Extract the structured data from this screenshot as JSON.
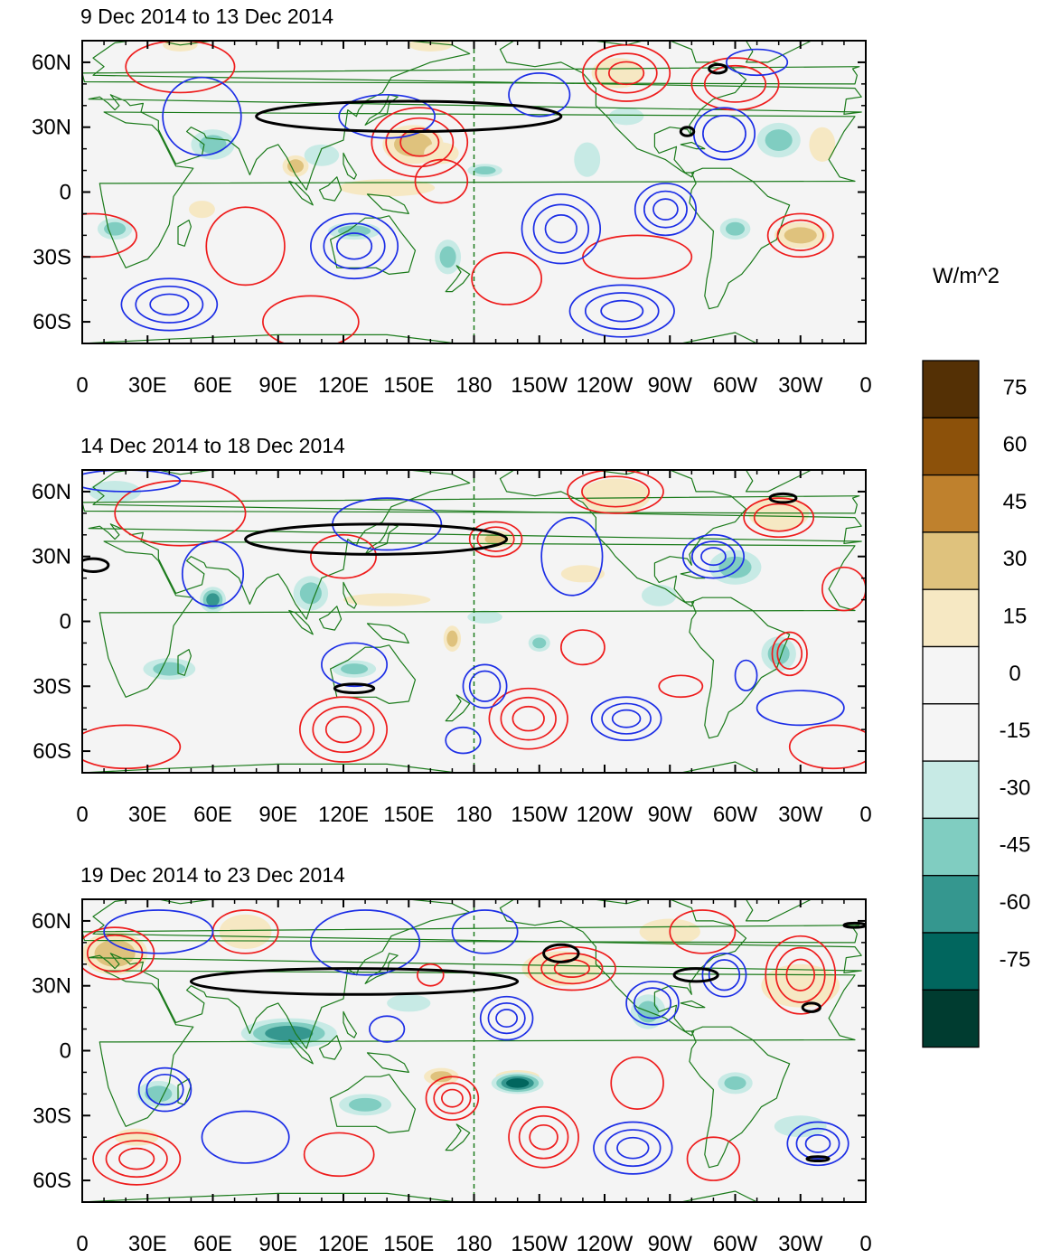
{
  "panels": [
    {
      "title": "9 Dec 2014 to 13 Dec 2014",
      "shading": [
        {
          "lon": 152,
          "lat": 22,
          "rx": 14,
          "ry": 9,
          "v": 38
        },
        {
          "lon": 165,
          "lat": 18,
          "rx": 8,
          "ry": 5,
          "v": 22
        },
        {
          "lon": 246,
          "lat": 55,
          "rx": 12,
          "ry": 7,
          "v": 26
        },
        {
          "lon": 330,
          "lat": -20,
          "rx": 12,
          "ry": 6,
          "v": 30
        },
        {
          "lon": 340,
          "lat": 22,
          "rx": 6,
          "ry": 8,
          "v": 20
        },
        {
          "lon": 160,
          "lat": 68,
          "rx": 10,
          "ry": 3,
          "v": 18
        },
        {
          "lon": 45,
          "lat": 68,
          "rx": 8,
          "ry": 3,
          "v": 18
        },
        {
          "lon": 98,
          "lat": 12,
          "rx": 6,
          "ry": 5,
          "v": 30
        },
        {
          "lon": 55,
          "lat": -8,
          "rx": 6,
          "ry": 4,
          "v": 28
        },
        {
          "lon": 140,
          "lat": 2,
          "rx": 22,
          "ry": 4,
          "v": 20
        },
        {
          "lon": 60,
          "lat": 22,
          "rx": 10,
          "ry": 7,
          "v": -40
        },
        {
          "lon": 110,
          "lat": 17,
          "rx": 8,
          "ry": 5,
          "v": -28
        },
        {
          "lon": 125,
          "lat": -18,
          "rx": 12,
          "ry": 4,
          "v": -40
        },
        {
          "lon": 168,
          "lat": -30,
          "rx": 6,
          "ry": 8,
          "v": -35
        },
        {
          "lon": 15,
          "lat": -17,
          "rx": 8,
          "ry": 5,
          "v": -30
        },
        {
          "lon": 185,
          "lat": 10,
          "rx": 8,
          "ry": 3,
          "v": -30
        },
        {
          "lon": 232,
          "lat": 15,
          "rx": 6,
          "ry": 8,
          "v": -25
        },
        {
          "lon": 320,
          "lat": 24,
          "rx": 10,
          "ry": 8,
          "v": -40
        },
        {
          "lon": 300,
          "lat": -17,
          "rx": 7,
          "ry": 5,
          "v": -30
        },
        {
          "lon": 250,
          "lat": 35,
          "rx": 8,
          "ry": 4,
          "v": -20
        }
      ],
      "red": [
        {
          "lon": 155,
          "lat": 23,
          "rx": 22,
          "ry": 16,
          "n": 3
        },
        {
          "lon": 250,
          "lat": 55,
          "rx": 20,
          "ry": 13,
          "n": 3
        },
        {
          "lon": 300,
          "lat": 50,
          "rx": 20,
          "ry": 12,
          "n": 2
        },
        {
          "lon": 330,
          "lat": -20,
          "rx": 15,
          "ry": 10,
          "n": 2
        },
        {
          "lon": 255,
          "lat": -30,
          "rx": 25,
          "ry": 10,
          "n": 1
        },
        {
          "lon": 75,
          "lat": -25,
          "rx": 18,
          "ry": 18,
          "n": 1
        },
        {
          "lon": 5,
          "lat": -20,
          "rx": 20,
          "ry": 10,
          "n": 1
        },
        {
          "lon": 105,
          "lat": -60,
          "rx": 22,
          "ry": 12,
          "n": 1
        },
        {
          "lon": 195,
          "lat": -40,
          "rx": 16,
          "ry": 12,
          "n": 1
        },
        {
          "lon": 45,
          "lat": 58,
          "rx": 25,
          "ry": 12,
          "n": 1
        },
        {
          "lon": 165,
          "lat": 5,
          "rx": 12,
          "ry": 10,
          "n": 1
        }
      ],
      "blue": [
        {
          "lon": 220,
          "lat": -17,
          "rx": 18,
          "ry": 16,
          "n": 3
        },
        {
          "lon": 268,
          "lat": -8,
          "rx": 14,
          "ry": 12,
          "n": 3
        },
        {
          "lon": 125,
          "lat": -25,
          "rx": 20,
          "ry": 15,
          "n": 3
        },
        {
          "lon": 40,
          "lat": -52,
          "rx": 22,
          "ry": 12,
          "n": 3
        },
        {
          "lon": 248,
          "lat": -55,
          "rx": 24,
          "ry": 12,
          "n": 3
        },
        {
          "lon": 210,
          "lat": 45,
          "rx": 14,
          "ry": 10,
          "n": 1
        },
        {
          "lon": 295,
          "lat": 27,
          "rx": 14,
          "ry": 12,
          "n": 2
        },
        {
          "lon": 310,
          "lat": 60,
          "rx": 14,
          "ry": 6,
          "n": 1
        },
        {
          "lon": 55,
          "lat": 35,
          "rx": 18,
          "ry": 18,
          "n": 1
        },
        {
          "lon": 140,
          "lat": 35,
          "rx": 22,
          "ry": 10,
          "n": 1
        }
      ],
      "black": [
        {
          "lon": 150,
          "lat": 35,
          "rx": 70,
          "ry": 7
        },
        {
          "lon": 292,
          "lat": 57,
          "rx": 4,
          "ry": 2
        },
        {
          "lon": 278,
          "lat": 28,
          "rx": 3,
          "ry": 2
        }
      ]
    },
    {
      "title": "14 Dec 2014 to 18 Dec 2014",
      "shading": [
        {
          "lon": 245,
          "lat": 58,
          "rx": 16,
          "ry": 8,
          "v": 25
        },
        {
          "lon": 320,
          "lat": 50,
          "rx": 14,
          "ry": 8,
          "v": 25
        },
        {
          "lon": 170,
          "lat": -8,
          "rx": 4,
          "ry": 6,
          "v": 40
        },
        {
          "lon": 190,
          "lat": 38,
          "rx": 8,
          "ry": 4,
          "v": 30
        },
        {
          "lon": 140,
          "lat": 10,
          "rx": 20,
          "ry": 3,
          "v": 18
        },
        {
          "lon": 230,
          "lat": 22,
          "rx": 10,
          "ry": 4,
          "v": 20
        },
        {
          "lon": 60,
          "lat": 10,
          "rx": 6,
          "ry": 6,
          "v": -55
        },
        {
          "lon": 105,
          "lat": 13,
          "rx": 8,
          "ry": 8,
          "v": -40
        },
        {
          "lon": 185,
          "lat": 2,
          "rx": 8,
          "ry": 3,
          "v": -25
        },
        {
          "lon": 210,
          "lat": -10,
          "rx": 5,
          "ry": 4,
          "v": -40
        },
        {
          "lon": 40,
          "lat": -22,
          "rx": 12,
          "ry": 5,
          "v": -35
        },
        {
          "lon": 125,
          "lat": -22,
          "rx": 10,
          "ry": 4,
          "v": -30
        },
        {
          "lon": 300,
          "lat": 25,
          "rx": 12,
          "ry": 8,
          "v": -35
        },
        {
          "lon": 320,
          "lat": -15,
          "rx": 8,
          "ry": 8,
          "v": -30
        },
        {
          "lon": 265,
          "lat": 12,
          "rx": 8,
          "ry": 5,
          "v": -25
        },
        {
          "lon": 15,
          "lat": 60,
          "rx": 12,
          "ry": 5,
          "v": -20
        }
      ],
      "red": [
        {
          "lon": 205,
          "lat": -45,
          "rx": 18,
          "ry": 14,
          "n": 3
        },
        {
          "lon": 120,
          "lat": -50,
          "rx": 20,
          "ry": 15,
          "n": 3
        },
        {
          "lon": 320,
          "lat": 48,
          "rx": 16,
          "ry": 9,
          "n": 2
        },
        {
          "lon": 245,
          "lat": 60,
          "rx": 22,
          "ry": 10,
          "n": 2
        },
        {
          "lon": 325,
          "lat": -15,
          "rx": 8,
          "ry": 10,
          "n": 2
        },
        {
          "lon": 230,
          "lat": -12,
          "rx": 10,
          "ry": 8,
          "n": 1
        },
        {
          "lon": 190,
          "lat": 38,
          "rx": 12,
          "ry": 8,
          "n": 2
        },
        {
          "lon": 120,
          "lat": 30,
          "rx": 15,
          "ry": 10,
          "n": 1
        },
        {
          "lon": 45,
          "lat": 50,
          "rx": 30,
          "ry": 15,
          "n": 1
        },
        {
          "lon": 20,
          "lat": -58,
          "rx": 25,
          "ry": 10,
          "n": 1
        },
        {
          "lon": 345,
          "lat": -58,
          "rx": 20,
          "ry": 10,
          "n": 1
        },
        {
          "lon": 275,
          "lat": -30,
          "rx": 10,
          "ry": 5,
          "n": 1
        },
        {
          "lon": 350,
          "lat": 15,
          "rx": 10,
          "ry": 10,
          "n": 1
        }
      ],
      "blue": [
        {
          "lon": 250,
          "lat": -45,
          "rx": 16,
          "ry": 10,
          "n": 3
        },
        {
          "lon": 290,
          "lat": 30,
          "rx": 14,
          "ry": 10,
          "n": 3
        },
        {
          "lon": 185,
          "lat": -30,
          "rx": 10,
          "ry": 10,
          "n": 2
        },
        {
          "lon": 140,
          "lat": 45,
          "rx": 25,
          "ry": 12,
          "n": 1
        },
        {
          "lon": 225,
          "lat": 30,
          "rx": 14,
          "ry": 18,
          "n": 1
        },
        {
          "lon": 60,
          "lat": 22,
          "rx": 14,
          "ry": 15,
          "n": 1
        },
        {
          "lon": 125,
          "lat": -20,
          "rx": 15,
          "ry": 10,
          "n": 1
        },
        {
          "lon": 175,
          "lat": -55,
          "rx": 8,
          "ry": 6,
          "n": 1
        },
        {
          "lon": 330,
          "lat": -40,
          "rx": 20,
          "ry": 8,
          "n": 1
        },
        {
          "lon": 20,
          "lat": 65,
          "rx": 25,
          "ry": 5,
          "n": 1
        },
        {
          "lon": 305,
          "lat": -25,
          "rx": 5,
          "ry": 7,
          "n": 1
        }
      ],
      "black": [
        {
          "lon": 135,
          "lat": 38,
          "rx": 60,
          "ry": 7
        },
        {
          "lon": 125,
          "lat": -31,
          "rx": 9,
          "ry": 2
        },
        {
          "lon": 322,
          "lat": 57,
          "rx": 6,
          "ry": 2
        },
        {
          "lon": 5,
          "lat": 26,
          "rx": 7,
          "ry": 3
        }
      ]
    },
    {
      "title": "19 Dec 2014 to 23 Dec 2014",
      "shading": [
        {
          "lon": 220,
          "lat": 38,
          "rx": 18,
          "ry": 8,
          "v": 25
        },
        {
          "lon": 270,
          "lat": 55,
          "rx": 14,
          "ry": 6,
          "v": 22
        },
        {
          "lon": 15,
          "lat": 45,
          "rx": 15,
          "ry": 10,
          "v": 30
        },
        {
          "lon": 330,
          "lat": 30,
          "rx": 18,
          "ry": 10,
          "v": 20
        },
        {
          "lon": 165,
          "lat": -12,
          "rx": 8,
          "ry": 4,
          "v": 35
        },
        {
          "lon": 75,
          "lat": 55,
          "rx": 12,
          "ry": 8,
          "v": 22
        },
        {
          "lon": 25,
          "lat": -40,
          "rx": 10,
          "ry": 4,
          "v": 18
        },
        {
          "lon": 200,
          "lat": -12,
          "rx": 10,
          "ry": 3,
          "v": 18
        },
        {
          "lon": 95,
          "lat": 8,
          "rx": 22,
          "ry": 7,
          "v": -50
        },
        {
          "lon": 200,
          "lat": -15,
          "rx": 12,
          "ry": 5,
          "v": -60
        },
        {
          "lon": 130,
          "lat": -25,
          "rx": 12,
          "ry": 5,
          "v": -35
        },
        {
          "lon": 35,
          "lat": -20,
          "rx": 10,
          "ry": 6,
          "v": -40
        },
        {
          "lon": 260,
          "lat": 18,
          "rx": 8,
          "ry": 8,
          "v": -40
        },
        {
          "lon": 300,
          "lat": -15,
          "rx": 8,
          "ry": 5,
          "v": -30
        },
        {
          "lon": 150,
          "lat": 22,
          "rx": 10,
          "ry": 4,
          "v": -25
        },
        {
          "lon": 330,
          "lat": -35,
          "rx": 12,
          "ry": 5,
          "v": -25
        }
      ],
      "red": [
        {
          "lon": 212,
          "lat": -40,
          "rx": 16,
          "ry": 14,
          "n": 3
        },
        {
          "lon": 25,
          "lat": -50,
          "rx": 20,
          "ry": 12,
          "n": 3
        },
        {
          "lon": 170,
          "lat": -22,
          "rx": 12,
          "ry": 10,
          "n": 3
        },
        {
          "lon": 225,
          "lat": 38,
          "rx": 20,
          "ry": 10,
          "n": 3
        },
        {
          "lon": 330,
          "lat": 35,
          "rx": 16,
          "ry": 18,
          "n": 3
        },
        {
          "lon": 15,
          "lat": 45,
          "rx": 18,
          "ry": 12,
          "n": 2
        },
        {
          "lon": 118,
          "lat": -48,
          "rx": 16,
          "ry": 10,
          "n": 1
        },
        {
          "lon": 75,
          "lat": 55,
          "rx": 15,
          "ry": 10,
          "n": 1
        },
        {
          "lon": 290,
          "lat": -50,
          "rx": 12,
          "ry": 10,
          "n": 1
        },
        {
          "lon": 285,
          "lat": 55,
          "rx": 15,
          "ry": 10,
          "n": 1
        },
        {
          "lon": 255,
          "lat": -15,
          "rx": 12,
          "ry": 12,
          "n": 1
        },
        {
          "lon": 160,
          "lat": 35,
          "rx": 6,
          "ry": 5,
          "n": 1
        }
      ],
      "blue": [
        {
          "lon": 253,
          "lat": -45,
          "rx": 18,
          "ry": 12,
          "n": 3
        },
        {
          "lon": 338,
          "lat": -43,
          "rx": 14,
          "ry": 10,
          "n": 3
        },
        {
          "lon": 38,
          "lat": -18,
          "rx": 12,
          "ry": 10,
          "n": 2
        },
        {
          "lon": 195,
          "lat": 15,
          "rx": 12,
          "ry": 10,
          "n": 3
        },
        {
          "lon": 262,
          "lat": 22,
          "rx": 12,
          "ry": 10,
          "n": 2
        },
        {
          "lon": 295,
          "lat": 35,
          "rx": 10,
          "ry": 10,
          "n": 2
        },
        {
          "lon": 75,
          "lat": -40,
          "rx": 20,
          "ry": 12,
          "n": 1
        },
        {
          "lon": 130,
          "lat": 50,
          "rx": 25,
          "ry": 15,
          "n": 1
        },
        {
          "lon": 35,
          "lat": 55,
          "rx": 25,
          "ry": 10,
          "n": 1
        },
        {
          "lon": 140,
          "lat": 10,
          "rx": 8,
          "ry": 6,
          "n": 1
        },
        {
          "lon": 185,
          "lat": 55,
          "rx": 15,
          "ry": 10,
          "n": 1
        }
      ],
      "black": [
        {
          "lon": 125,
          "lat": 32,
          "rx": 75,
          "ry": 6
        },
        {
          "lon": 220,
          "lat": 45,
          "rx": 8,
          "ry": 4
        },
        {
          "lon": 282,
          "lat": 35,
          "rx": 10,
          "ry": 3
        },
        {
          "lon": 335,
          "lat": 20,
          "rx": 4,
          "ry": 2
        },
        {
          "lon": 355,
          "lat": 58,
          "rx": 5,
          "ry": 1
        },
        {
          "lon": 338,
          "lat": -50,
          "rx": 5,
          "ry": 1
        }
      ]
    }
  ],
  "axes": {
    "lon_labels": [
      "0",
      "30E",
      "60E",
      "90E",
      "120E",
      "150E",
      "180",
      "150W",
      "120W",
      "90W",
      "60W",
      "30W",
      "0"
    ],
    "lat_labels": [
      "60N",
      "30N",
      "0",
      "30S",
      "60S"
    ]
  },
  "colorbar": {
    "unit": "W/m^2",
    "labels": [
      "75",
      "60",
      "45",
      "30",
      "15",
      "0",
      "-15",
      "-30",
      "-45",
      "-60",
      "-75"
    ],
    "colors": [
      "#543005",
      "#8c510a",
      "#bf812d",
      "#dfc27d",
      "#f6e8c3",
      "#f5f5f5",
      "#f5f5f5",
      "#c7eae5",
      "#80cdc1",
      "#35978f",
      "#01665e",
      "#003c30"
    ]
  },
  "style": {
    "land": "#1a7a1a",
    "positive_contour": "#ee1c1c",
    "negative_contour": "#1c2ee6",
    "jet_contour": "#000000",
    "dateline": "#1a7a1a",
    "background": "#f4f4f4"
  }
}
